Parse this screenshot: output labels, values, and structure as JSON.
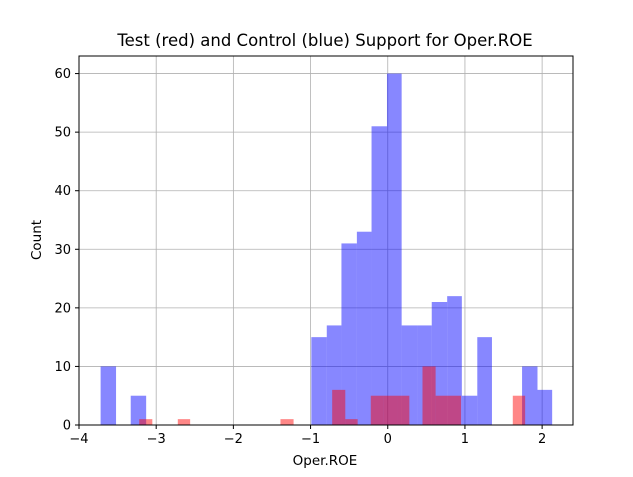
{
  "chart_data": {
    "type": "bar",
    "title": "Test (red) and Control (blue) Support for Oper.ROE",
    "xlabel": "Oper.ROE",
    "ylabel": "Count",
    "xlim": [
      -4.0,
      2.4
    ],
    "ylim": [
      0,
      63
    ],
    "xticks": [
      -4,
      -3,
      -2,
      -1,
      0,
      1,
      2
    ],
    "yticks": [
      0,
      10,
      20,
      30,
      40,
      50,
      60
    ],
    "xtick_labels": [
      "−4",
      "−3",
      "−2",
      "−1",
      "0",
      "1",
      "2"
    ],
    "ytick_labels": [
      "0",
      "10",
      "20",
      "30",
      "40",
      "50",
      "60"
    ],
    "grid": true,
    "series": [
      {
        "color": "#0000ff",
        "alpha": 0.47,
        "bins": [
          {
            "x0": -3.72,
            "x1": -3.52,
            "count": 10
          },
          {
            "x0": -3.33,
            "x1": -3.13,
            "count": 5
          },
          {
            "x0": -0.99,
            "x1": -0.79,
            "count": 15
          },
          {
            "x0": -0.79,
            "x1": -0.6,
            "count": 17
          },
          {
            "x0": -0.6,
            "x1": -0.4,
            "count": 31
          },
          {
            "x0": -0.4,
            "x1": -0.21,
            "count": 33
          },
          {
            "x0": -0.21,
            "x1": -0.01,
            "count": 51
          },
          {
            "x0": -0.01,
            "x1": 0.18,
            "count": 60
          },
          {
            "x0": 0.18,
            "x1": 0.38,
            "count": 17
          },
          {
            "x0": 0.38,
            "x1": 0.57,
            "count": 17
          },
          {
            "x0": 0.57,
            "x1": 0.77,
            "count": 21
          },
          {
            "x0": 0.77,
            "x1": 0.96,
            "count": 22
          },
          {
            "x0": 0.96,
            "x1": 1.16,
            "count": 5
          },
          {
            "x0": 1.16,
            "x1": 1.35,
            "count": 15
          },
          {
            "x0": 1.74,
            "x1": 1.94,
            "count": 10
          },
          {
            "x0": 1.94,
            "x1": 2.13,
            "count": 6
          }
        ]
      },
      {
        "color": "#ff0000",
        "alpha": 0.47,
        "bins": [
          {
            "x0": -3.22,
            "x1": -3.05,
            "count": 1
          },
          {
            "x0": -2.72,
            "x1": -2.56,
            "count": 1
          },
          {
            "x0": -1.39,
            "x1": -1.22,
            "count": 1
          },
          {
            "x0": -0.72,
            "x1": -0.55,
            "count": 6
          },
          {
            "x0": -0.55,
            "x1": -0.39,
            "count": 1
          },
          {
            "x0": -0.22,
            "x1": -0.05,
            "count": 5
          },
          {
            "x0": -0.05,
            "x1": 0.12,
            "count": 5
          },
          {
            "x0": 0.12,
            "x1": 0.28,
            "count": 5
          },
          {
            "x0": 0.45,
            "x1": 0.62,
            "count": 10
          },
          {
            "x0": 0.62,
            "x1": 0.78,
            "count": 5
          },
          {
            "x0": 0.78,
            "x1": 0.95,
            "count": 5
          },
          {
            "x0": 1.62,
            "x1": 1.78,
            "count": 5
          }
        ]
      }
    ]
  }
}
